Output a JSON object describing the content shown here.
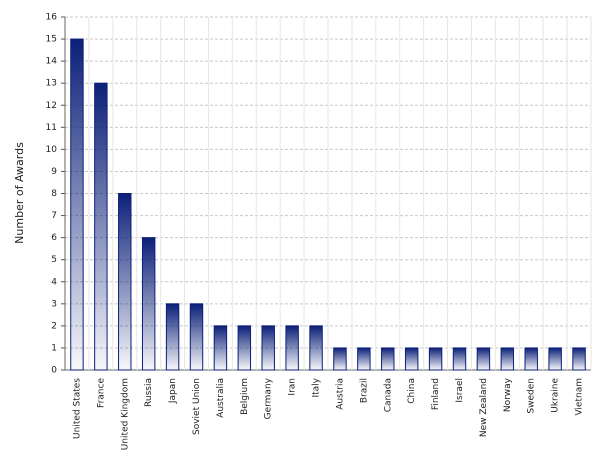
{
  "chart_data": {
    "type": "bar",
    "y_label": "Number of Awards",
    "categories": [
      "United States",
      "France",
      "United Kingdom",
      "Russia",
      "Japan",
      "Soviet Union",
      "Australia",
      "Belgium",
      "Germany",
      "Iran",
      "Italy",
      "Austria",
      "Brazil",
      "Canada",
      "China",
      "Finland",
      "Israel",
      "New Zealand",
      "Norway",
      "Sweden",
      "Ukraine",
      "Vietnam"
    ],
    "values": [
      15,
      13,
      8,
      6,
      3,
      3,
      2,
      2,
      2,
      2,
      2,
      1,
      1,
      1,
      1,
      1,
      1,
      1,
      1,
      1,
      1,
      1
    ],
    "color": "#0b1f78",
    "ylim": [
      0,
      16
    ],
    "yticks": [
      0,
      1,
      2,
      3,
      4,
      5,
      6,
      7,
      8,
      9,
      10,
      11,
      12,
      13,
      14,
      15,
      16
    ],
    "grid": true
  }
}
